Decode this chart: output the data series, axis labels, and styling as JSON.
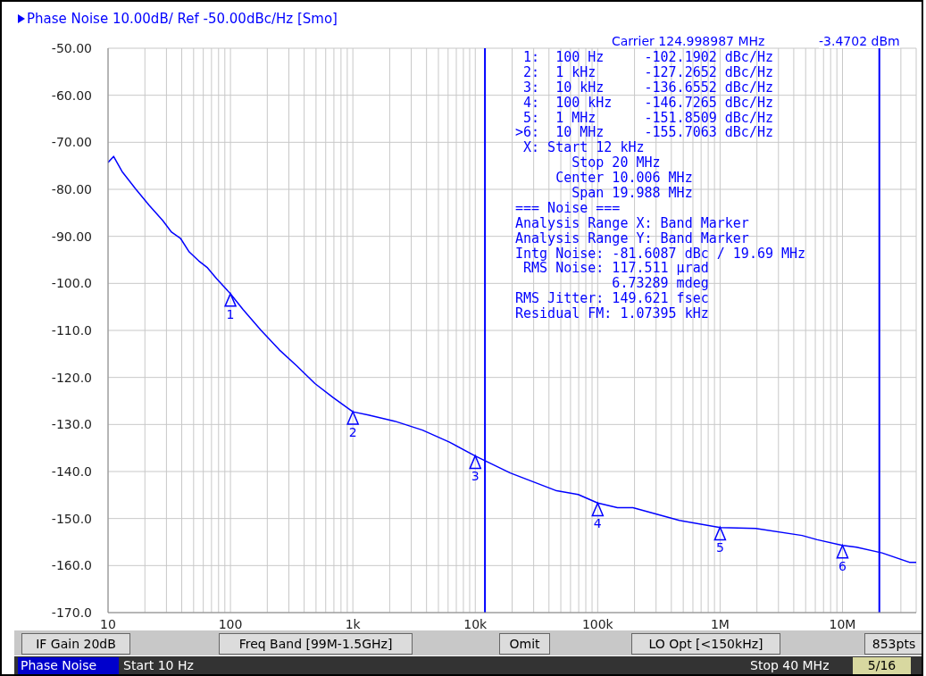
{
  "chart_data": {
    "type": "line",
    "title": "Phase Noise 10.00dB/ Ref -50.00dBc/Hz [Smo]",
    "log": "x",
    "grid": true,
    "x": [
      10,
      11.1,
      13,
      16.9,
      21.7,
      27.9,
      33,
      39,
      46,
      55,
      65,
      77,
      100,
      127,
      178,
      250,
      350,
      490,
      685,
      1000,
      1340,
      2200,
      3700,
      6100,
      10000,
      19300,
      46200,
      69300,
      100000,
      145000,
      194000,
      465000,
      1000000,
      1950000,
      4670000,
      6220000,
      10000000,
      13000000,
      21000000,
      35200000,
      40000000
    ],
    "series": [
      {
        "color": "#0000ff",
        "values": [
          -74.3,
          -73.0,
          -76.2,
          -80.0,
          -83.4,
          -86.6,
          -89.1,
          -90.4,
          -93.3,
          -95.2,
          -96.7,
          -99.0,
          -102.2,
          -105.6,
          -110.0,
          -114.1,
          -117.6,
          -121.3,
          -124.2,
          -127.3,
          -128.0,
          -129.3,
          -131.2,
          -133.7,
          -136.7,
          -140.3,
          -144.1,
          -144.9,
          -146.7,
          -147.7,
          -147.7,
          -150.4,
          -151.9,
          -152.1,
          -153.6,
          -154.5,
          -155.7,
          -156.1,
          -157.3,
          -159.3,
          -159.3
        ]
      }
    ],
    "xlim": [
      10,
      40000000
    ],
    "xticks": [
      10,
      {
        "value": 20,
        "label": null
      },
      {
        "value": 30,
        "label": null
      },
      {
        "value": 40,
        "label": null
      },
      {
        "value": 50,
        "label": null
      },
      {
        "value": 60,
        "label": null
      },
      {
        "value": 70,
        "label": null
      },
      {
        "value": 80,
        "label": null
      },
      {
        "value": 90,
        "label": null
      },
      100,
      {
        "value": 200,
        "label": null
      },
      {
        "value": 300,
        "label": null
      },
      {
        "value": 400,
        "label": null
      },
      {
        "value": 500,
        "label": null
      },
      {
        "value": 600,
        "label": null
      },
      {
        "value": 700,
        "label": null
      },
      {
        "value": 800,
        "label": null
      },
      {
        "value": 900,
        "label": null
      },
      {
        "value": 1000,
        "label": "1k"
      },
      {
        "value": 2000,
        "label": null
      },
      {
        "value": 3000,
        "label": null
      },
      {
        "value": 4000,
        "label": null
      },
      {
        "value": 5000,
        "label": null
      },
      {
        "value": 6000,
        "label": null
      },
      {
        "value": 7000,
        "label": null
      },
      {
        "value": 8000,
        "label": null
      },
      {
        "value": 9000,
        "label": null
      },
      {
        "value": 10000,
        "label": "10k"
      },
      {
        "value": 20000,
        "label": null
      },
      {
        "value": 30000,
        "label": null
      },
      {
        "value": 40000,
        "label": null
      },
      {
        "value": 50000,
        "label": null
      },
      {
        "value": 60000,
        "label": null
      },
      {
        "value": 70000,
        "label": null
      },
      {
        "value": 80000,
        "label": null
      },
      {
        "value": 90000,
        "label": null
      },
      {
        "value": 100000,
        "label": "100k"
      },
      {
        "value": 200000,
        "label": null
      },
      {
        "value": 300000,
        "label": null
      },
      {
        "value": 400000,
        "label": null
      },
      {
        "value": 500000,
        "label": null
      },
      {
        "value": 600000,
        "label": null
      },
      {
        "value": 700000,
        "label": null
      },
      {
        "value": 800000,
        "label": null
      },
      {
        "value": 900000,
        "label": null
      },
      {
        "value": 1000000,
        "label": "1M"
      },
      {
        "value": 2000000,
        "label": null
      },
      {
        "value": 3000000,
        "label": null
      },
      {
        "value": 4000000,
        "label": null
      },
      {
        "value": 5000000,
        "label": null
      },
      {
        "value": 6000000,
        "label": null
      },
      {
        "value": 7000000,
        "label": null
      },
      {
        "value": 8000000,
        "label": null
      },
      {
        "value": 9000000,
        "label": null
      },
      {
        "value": 10000000,
        "label": "10M"
      },
      {
        "value": 20000000,
        "label": null
      },
      {
        "value": 30000000,
        "label": null
      },
      {
        "value": 40000000,
        "label": null
      }
    ],
    "ylim": [
      -170,
      -50
    ],
    "yticks": [
      {
        "value": -170,
        "label": "-170.0"
      },
      {
        "value": -160,
        "label": "-160.0"
      },
      {
        "value": -150,
        "label": "-150.0"
      },
      {
        "value": -140,
        "label": "-140.0"
      },
      {
        "value": -130,
        "label": "-130.0"
      },
      {
        "value": -120,
        "label": "-120.0"
      },
      {
        "value": -110,
        "label": "-110.0"
      },
      {
        "value": -100,
        "label": "-100.0"
      },
      {
        "value": -90,
        "label": "-90.00"
      },
      {
        "value": -80,
        "label": "-80.00"
      },
      {
        "value": -70,
        "label": "-70.00"
      },
      {
        "value": -60,
        "label": "-60.00"
      },
      {
        "value": -50,
        "label": "-50.00"
      }
    ],
    "ref_lines": [
      {
        "axis": "x",
        "value": 12000,
        "color": "#0000ff"
      },
      {
        "axis": "x",
        "value": 20000000,
        "color": "#0000ff"
      }
    ],
    "annotations": [
      "Carrier 124.998987 MHz",
      "-3.4702 dBm",
      " 1:  100 Hz     -102.1902 dBc/Hz",
      " 2:  1 kHz      -127.2652 dBc/Hz",
      " 3:  10 kHz     -136.6552 dBc/Hz",
      " 4:  100 kHz    -146.7265 dBc/Hz",
      " 5:  1 MHz      -151.8509 dBc/Hz",
      ">6:  10 MHz     -155.7063 dBc/Hz",
      " X: Start 12 kHz",
      "       Stop 20 MHz",
      "     Center 10.006 MHz",
      "       Span 19.988 MHz",
      "=== Noise ===",
      "Analysis Range X: Band Marker",
      "Analysis Range Y: Band Marker",
      "Intg Noise: -81.6087 dBc / 19.69 MHz",
      " RMS Noise: 117.511 µrad",
      "            6.73289 mdeg",
      "RMS Jitter: 149.621 fsec",
      "Residual FM: 1.07395 kHz",
      "IF Gain 20dB",
      "Freq Band [99M-1.5GHz]",
      "Omit",
      "LO Opt [<150kHz]",
      "853pts",
      "Phase Noise",
      "Start 10 Hz",
      "Stop 40 MHz",
      "5/16",
      {
        "text": "1",
        "x": 100,
        "y": -102.1902
      },
      {
        "text": "2",
        "x": 1000,
        "y": -127.2652
      },
      {
        "text": "3",
        "x": 10000,
        "y": -136.6552
      },
      {
        "text": "4",
        "x": 100000,
        "y": -146.7265
      },
      {
        "text": "5",
        "x": 1000000,
        "y": -151.8509
      },
      {
        "text": "6",
        "x": 10000000,
        "y": -155.7063
      }
    ]
  }
}
